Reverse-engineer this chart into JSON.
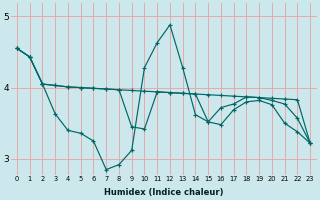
{
  "xlabel": "Humidex (Indice chaleur)",
  "bg_color": "#cce8ec",
  "grid_color_h": "#e8a0a0",
  "grid_color_v": "#e8a0a0",
  "line_color": "#006666",
  "ylim": [
    2.78,
    5.18
  ],
  "xlim": [
    -0.5,
    23.5
  ],
  "yticks": [
    3,
    4,
    5
  ],
  "x_ticks": [
    0,
    1,
    2,
    3,
    4,
    5,
    6,
    7,
    8,
    9,
    10,
    11,
    12,
    13,
    14,
    15,
    16,
    17,
    18,
    19,
    20,
    21,
    22,
    23
  ],
  "line1_y": [
    4.55,
    4.43,
    4.05,
    4.03,
    4.01,
    4.0,
    3.99,
    3.98,
    3.97,
    3.96,
    3.95,
    3.94,
    3.93,
    3.92,
    3.91,
    3.9,
    3.89,
    3.88,
    3.87,
    3.86,
    3.85,
    3.84,
    3.83,
    3.22
  ],
  "line2_y": [
    4.55,
    4.43,
    4.05,
    3.63,
    3.4,
    3.36,
    3.25,
    2.85,
    2.92,
    3.12,
    4.28,
    4.63,
    4.88,
    4.28,
    3.62,
    3.52,
    3.72,
    3.77,
    3.87,
    3.86,
    3.82,
    3.77,
    3.57,
    3.22
  ],
  "line3_y": [
    4.55,
    4.43,
    4.05,
    4.03,
    4.01,
    4.0,
    3.99,
    3.98,
    3.97,
    3.45,
    3.42,
    3.94,
    3.93,
    3.92,
    3.91,
    3.52,
    3.48,
    3.69,
    3.8,
    3.82,
    3.76,
    3.5,
    3.38,
    3.22
  ]
}
